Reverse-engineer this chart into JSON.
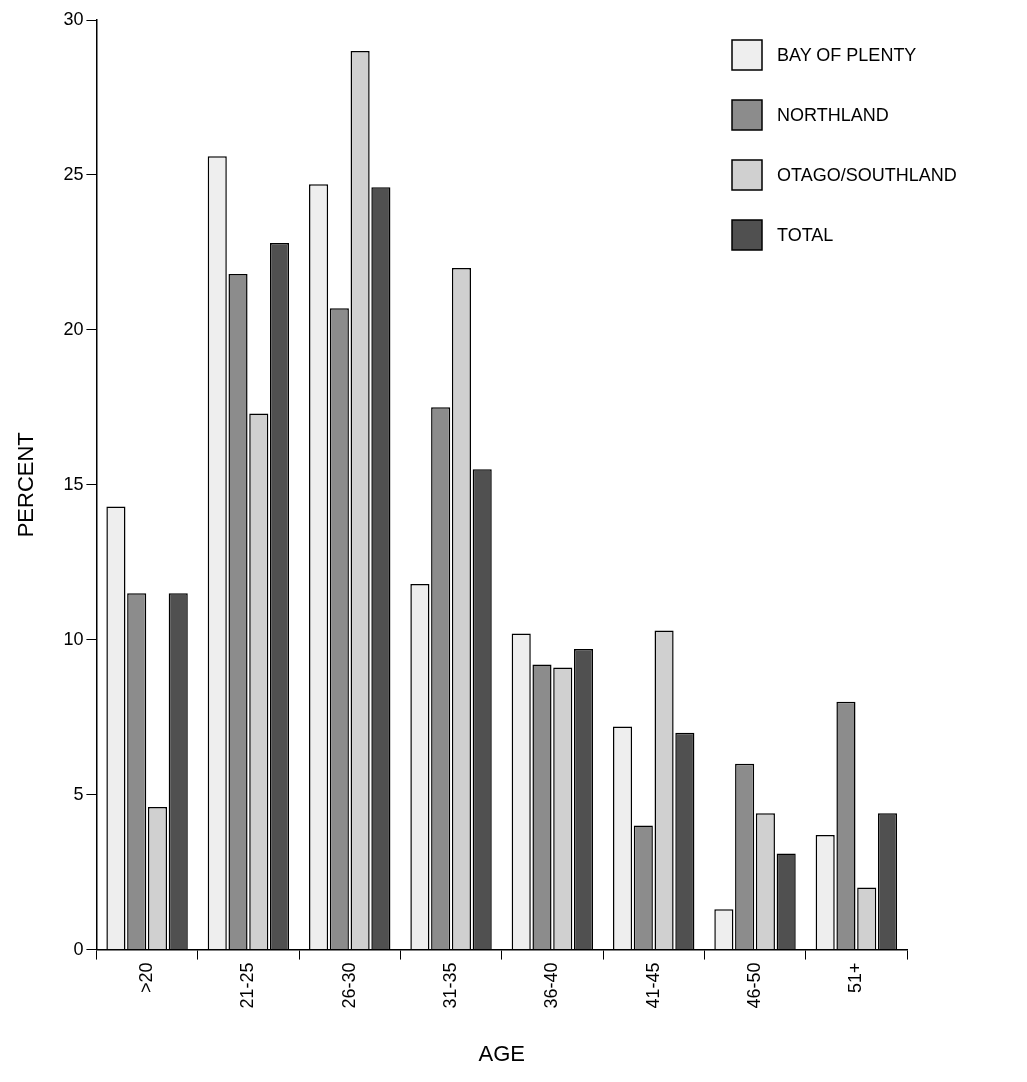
{
  "chart_data": {
    "type": "bar",
    "xlabel": "AGE",
    "ylabel": "PERCENT",
    "categories": [
      ">20",
      "21-25",
      "26-30",
      "31-35",
      "36-40",
      "41-45",
      "46-50",
      "51+"
    ],
    "series": [
      {
        "name": "BAY OF PLENTY",
        "color": "#eeeeee",
        "values": [
          14.3,
          25.6,
          24.7,
          11.8,
          10.2,
          7.2,
          1.3,
          3.7
        ]
      },
      {
        "name": "NORTHLAND",
        "color": "#8c8c8c",
        "values": [
          11.5,
          21.8,
          20.7,
          17.5,
          9.2,
          4.0,
          6.0,
          8.0
        ]
      },
      {
        "name": "OTAGO/SOUTHLAND",
        "color": "#d0d0d0",
        "values": [
          4.6,
          17.3,
          29.0,
          22.0,
          9.1,
          10.3,
          4.4,
          2.0
        ]
      },
      {
        "name": "TOTAL",
        "color": "#505050",
        "values": [
          11.5,
          22.8,
          24.6,
          15.5,
          9.7,
          7.0,
          3.1,
          4.4
        ]
      }
    ],
    "ylim": [
      0,
      30
    ],
    "yticks": [
      0,
      5,
      10,
      15,
      20,
      25,
      30
    ],
    "grid": false,
    "legend": "top right"
  }
}
